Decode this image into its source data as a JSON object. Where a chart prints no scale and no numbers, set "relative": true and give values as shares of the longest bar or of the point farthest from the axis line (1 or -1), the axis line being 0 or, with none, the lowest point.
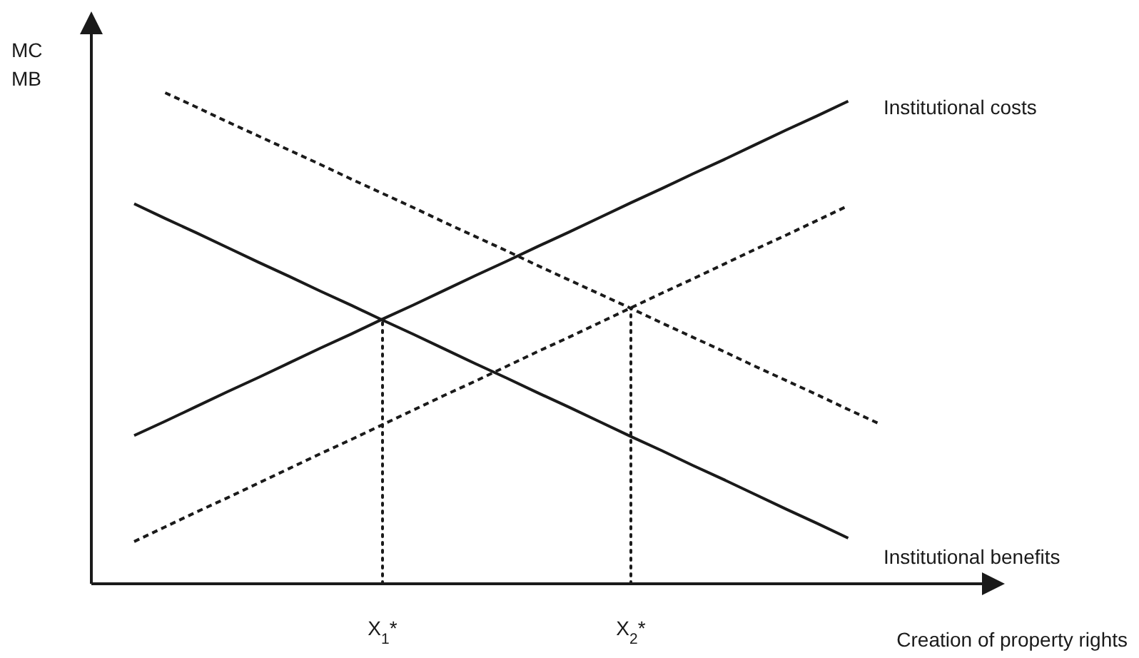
{
  "chart_data": {
    "type": "line",
    "relative": true,
    "xlabel": "Creation of property rights",
    "ylabel": "MC\nMB",
    "categories": [
      null,
      null,
      null,
      null,
      null,
      null,
      null,
      null,
      "X$_{1}$*",
      null,
      null,
      null,
      null,
      null,
      null,
      null,
      "X$_{2}$*",
      null,
      null,
      null,
      null,
      null,
      null,
      null,
      null,
      null
    ],
    "series": [
      {
        "color": "#1a1a1a",
        "line_style": "solid",
        "values": [
          0.302,
          0.331,
          0.361,
          0.391,
          0.42,
          0.45,
          0.48,
          0.509,
          0.539,
          0.568,
          0.598,
          0.628,
          0.657,
          0.687,
          0.716,
          0.746,
          0.776,
          0.805,
          0.835,
          0.864,
          0.894,
          0.924,
          0.953,
          0.983,
          null,
          null
        ]
      },
      {
        "color": "#1a1a1a",
        "line_style": "solid",
        "values": [
          0.774,
          0.744,
          0.715,
          0.685,
          0.655,
          0.626,
          0.596,
          0.567,
          0.537,
          0.508,
          0.478,
          0.448,
          0.419,
          0.389,
          0.36,
          0.33,
          0.3,
          0.271,
          0.241,
          0.212,
          0.182,
          0.152,
          0.123,
          0.093,
          null,
          null
        ]
      },
      {
        "color": "#1a1a1a",
        "line_style": "dashed",
        "values": [
          0.086,
          0.116,
          0.146,
          0.175,
          0.205,
          0.235,
          0.265,
          0.294,
          0.324,
          0.354,
          0.384,
          0.413,
          0.443,
          0.473,
          0.502,
          0.532,
          0.562,
          0.592,
          0.621,
          0.651,
          0.681,
          0.71,
          0.74,
          0.77,
          null,
          null
        ]
      },
      {
        "color": "#1a1a1a",
        "line_style": "dashed",
        "values": [
          null,
          1.0,
          0.971,
          0.941,
          0.912,
          0.883,
          0.854,
          0.824,
          0.795,
          0.766,
          0.736,
          0.707,
          0.678,
          0.648,
          0.619,
          0.59,
          0.561,
          0.531,
          0.502,
          0.473,
          0.443,
          0.414,
          0.385,
          0.355,
          0.326,
          null
        ]
      }
    ],
    "ref_lines": [
      {
        "axis": "x",
        "value": "X$_{1}$*",
        "line_style": "dotted",
        "color": "#1a1a1a"
      },
      {
        "axis": "x",
        "value": "X$_{2}$*",
        "line_style": "dotted",
        "color": "#1a1a1a"
      }
    ],
    "annotations": [
      "Institutional costs",
      "Institutional benefits"
    ]
  }
}
